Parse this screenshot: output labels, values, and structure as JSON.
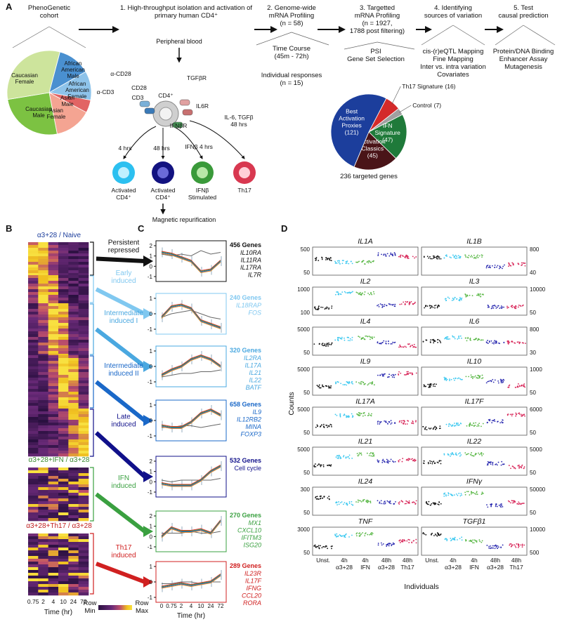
{
  "panel_labels": [
    "A",
    "B",
    "C",
    "D"
  ],
  "panel_a": {
    "steps": [
      [
        "PhenoGenetic",
        "cohort"
      ],
      [
        "1. High-throughput isolation and activation of",
        "primary human CD4⁺"
      ],
      [
        "2. Genome-wide",
        "mRNA Profiling",
        "(n = 58)"
      ],
      [
        "3. Targetted",
        "mRNA Profiling",
        "(n = 1927,",
        "1788 post filtering)"
      ],
      [
        "4. Identifying",
        "sources of variation"
      ],
      [
        "5. Test",
        "causal  prediction"
      ]
    ],
    "cohort_groups": [
      [
        "African",
        "American",
        "Male"
      ],
      [
        "African",
        "American",
        "Female"
      ],
      [
        "Asian",
        "Male"
      ],
      [
        "Asian",
        "Female"
      ],
      [
        "Caucasian",
        "Male"
      ],
      [
        "Caucasian",
        "Female"
      ]
    ],
    "step2_notes": [
      [
        "Time Course",
        "(45m - 72h)"
      ],
      [
        "Individual responses",
        "(n = 15)"
      ]
    ],
    "step3_notes": [
      "PSI",
      "Gene Set Selection"
    ],
    "step4_notes": [
      "cis-(r)eQTL Mapping",
      "Fine Mapping",
      "Inter vs. intra variation",
      "Covariates"
    ],
    "step5_notes": [
      "Protein/DNA Binding",
      "Enhancer Assay",
      "Mutagenesis"
    ],
    "blood": "Peripheral blood",
    "receptors": [
      "α-CD28",
      "CD28",
      "TGFβR",
      "α-CD3",
      "CD3",
      "CD4⁺",
      "IL6R",
      "IFNβR"
    ],
    "conditions": [
      [
        "4 hrs"
      ],
      [
        "48 hrs"
      ],
      [
        "IFNβ 4 hrs"
      ],
      [
        "IL-6, TGFβ",
        "48 hrs"
      ]
    ],
    "cells": [
      [
        "Activated",
        "CD4⁺"
      ],
      [
        "Activated",
        "CD4⁺"
      ],
      [
        "IFNβ",
        "Stimulated"
      ],
      [
        "Th17"
      ]
    ],
    "repurification": "Magnetic repurification",
    "gene_sets": {
      "slices": [
        {
          "name": [
            "Th17 Signature"
          ],
          "value": 16,
          "value_label": "(16)",
          "color": "#d42a2a"
        },
        {
          "name": [
            "Control"
          ],
          "value": 7,
          "value_label": "(7)",
          "color": "#a0a0a0"
        },
        {
          "name": [
            "IFN",
            "Signature"
          ],
          "value": 47,
          "value_label": "(47)",
          "color": "#1f7a3a"
        },
        {
          "name": [
            "Activation",
            "Classics"
          ],
          "value": 45,
          "value_label": "(45)",
          "color": "#4a1418"
        },
        {
          "name": [
            "Best",
            "Activation",
            "Proxies"
          ],
          "value": 121,
          "value_label": "(121)",
          "color": "#1c3e9c"
        }
      ],
      "total": "236 targeted genes"
    }
  },
  "panel_b": {
    "titles": [
      "α3+28 / Naive",
      "α3+28+IFN / α3+28",
      "α3+28+Th17 / α3+28"
    ],
    "times": [
      "0.75",
      "2",
      "4",
      "10",
      "24",
      "72"
    ],
    "x_label": "Time (hr)",
    "legend_min": [
      "Row",
      "Min"
    ],
    "legend_max": [
      "Row",
      "Max"
    ],
    "clusters": [
      [
        "Persistent",
        "repressed"
      ],
      [
        "Early",
        "induced"
      ],
      [
        "Intermediate",
        "induced I"
      ],
      [
        "Intermediate",
        "induced II"
      ],
      [
        "Late",
        "induced"
      ],
      [
        "IFN",
        "induced"
      ],
      [
        "Th17",
        "induced"
      ]
    ]
  },
  "panel_c": {
    "times": [
      "0",
      "0.75",
      "2",
      "4",
      "10",
      "24",
      "72"
    ],
    "x_label": "Time (hr)",
    "yticks": [
      [
        "2",
        "1",
        "0",
        "-1"
      ],
      [
        "1",
        "0",
        "-1"
      ],
      [
        "1",
        "0",
        "-1"
      ],
      [
        "1",
        "0",
        "-1"
      ],
      [
        "2",
        "1",
        "0",
        "-1"
      ],
      [
        "2",
        "1",
        "0",
        "-1"
      ],
      [
        "1",
        "0",
        "-1"
      ]
    ],
    "sets": [
      {
        "count": "456 Genes",
        "genes": [
          "IL10RA",
          "IL11RA",
          "IL17RA",
          "IL7R"
        ]
      },
      {
        "count": "240 Genes",
        "genes": [
          "IL18RAP",
          "FOS"
        ]
      },
      {
        "count": "320 Genes",
        "genes": [
          "IL2RA",
          "IL17A",
          "IL21",
          "IL22",
          "BATF"
        ]
      },
      {
        "count": "658 Genes",
        "genes": [
          "IL9",
          "IL12RB2",
          "MINA",
          "FOXP3"
        ]
      },
      {
        "count": "532 Genes",
        "genes": [
          "Cell cycle"
        ]
      },
      {
        "count": "270 Genes",
        "genes": [
          "MX1",
          "CXCL10",
          "IFITM3",
          "ISG20"
        ]
      },
      {
        "count": "289 Genes",
        "genes": [
          "IL23R",
          "IL17F",
          "IFNG",
          "CCL20",
          "RORA"
        ]
      }
    ]
  },
  "panel_d": {
    "y_label": "Counts",
    "x_label": "Individuals",
    "groups": [
      [
        "Unst."
      ],
      [
        "4h",
        "α3+28"
      ],
      [
        "4h",
        "IFN"
      ],
      [
        "48h",
        "α3+28"
      ],
      [
        "48h",
        "Th17"
      ]
    ],
    "genes": [
      {
        "name": "IL1A",
        "top": "500",
        "bottom": "50"
      },
      {
        "name": "IL1B",
        "top": "800",
        "bottom": "40"
      },
      {
        "name": "IL2",
        "top": "1000",
        "bottom": "100"
      },
      {
        "name": "IL3",
        "top": "10000",
        "bottom": "50"
      },
      {
        "name": "IL4",
        "top": "5000",
        "bottom": "50"
      },
      {
        "name": "IL6",
        "top": "800",
        "bottom": "30"
      },
      {
        "name": "IL9",
        "top": "5000",
        "bottom": "50"
      },
      {
        "name": "IL10",
        "top": "1000",
        "bottom": "50"
      },
      {
        "name": "IL17A",
        "top": "5000",
        "bottom": "50"
      },
      {
        "name": "IL17F",
        "top": "6000",
        "bottom": "50"
      },
      {
        "name": "IL21",
        "top": "5000",
        "bottom": "50"
      },
      {
        "name": "IL22",
        "top": "5000",
        "bottom": "50"
      },
      {
        "name": "IL24",
        "top": "300",
        "bottom": "50"
      },
      {
        "name": "IFNγ",
        "top": "50000",
        "bottom": "50"
      },
      {
        "name": "TNF",
        "top": "3000",
        "bottom": "50"
      },
      {
        "name": "TGFβ1",
        "top": "10000",
        "bottom": "500"
      }
    ]
  }
}
